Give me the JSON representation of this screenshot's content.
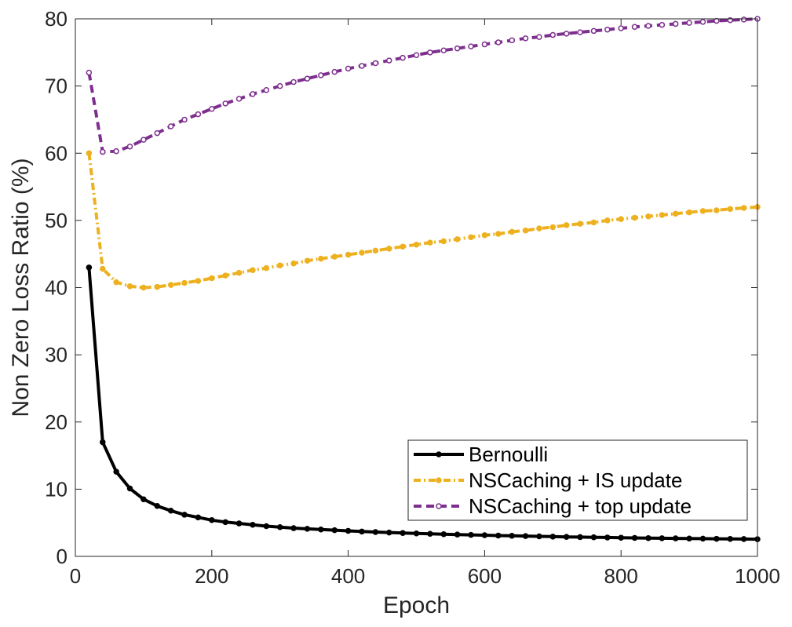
{
  "chart_data": {
    "type": "line",
    "title": "",
    "xlabel": "Epoch",
    "ylabel": "Non Zero Loss Ratio (%)",
    "xlim": [
      0,
      1000
    ],
    "ylim": [
      0,
      80
    ],
    "xticks": [
      0,
      200,
      400,
      600,
      800,
      1000
    ],
    "yticks": [
      0,
      10,
      20,
      30,
      40,
      50,
      60,
      70,
      80
    ],
    "grid": false,
    "legend_position": "bottom-right",
    "x": [
      20,
      40,
      60,
      80,
      100,
      120,
      140,
      160,
      180,
      200,
      220,
      240,
      260,
      280,
      300,
      320,
      340,
      360,
      380,
      400,
      420,
      440,
      460,
      480,
      500,
      520,
      540,
      560,
      580,
      600,
      620,
      640,
      660,
      680,
      700,
      720,
      740,
      760,
      780,
      800,
      820,
      840,
      860,
      880,
      900,
      920,
      940,
      960,
      980,
      1000
    ],
    "series": [
      {
        "name": "Bernoulli",
        "color": "#000000",
        "dash": "solid",
        "values": [
          43.0,
          17.0,
          12.6,
          10.1,
          8.5,
          7.5,
          6.8,
          6.2,
          5.8,
          5.4,
          5.1,
          4.9,
          4.7,
          4.5,
          4.35,
          4.2,
          4.1,
          4.0,
          3.9,
          3.8,
          3.7,
          3.62,
          3.55,
          3.48,
          3.42,
          3.36,
          3.3,
          3.25,
          3.2,
          3.15,
          3.1,
          3.06,
          3.02,
          2.98,
          2.94,
          2.9,
          2.87,
          2.84,
          2.81,
          2.78,
          2.75,
          2.72,
          2.7,
          2.68,
          2.66,
          2.64,
          2.62,
          2.6,
          2.58,
          2.56
        ]
      },
      {
        "name": "NSCaching + IS update",
        "color": "#EDB120",
        "dash": "dashdot",
        "values": [
          60.0,
          42.8,
          40.8,
          40.2,
          40.0,
          40.1,
          40.4,
          40.7,
          41.0,
          41.4,
          41.8,
          42.2,
          42.6,
          42.9,
          43.3,
          43.6,
          44.0,
          44.3,
          44.6,
          44.9,
          45.2,
          45.5,
          45.8,
          46.1,
          46.4,
          46.7,
          46.9,
          47.2,
          47.5,
          47.8,
          48.0,
          48.3,
          48.5,
          48.8,
          49.0,
          49.3,
          49.5,
          49.7,
          50.0,
          50.2,
          50.4,
          50.6,
          50.8,
          51.0,
          51.2,
          51.4,
          51.5,
          51.7,
          51.85,
          52.0
        ]
      },
      {
        "name": "NSCaching + top update",
        "color": "#7E2F8E",
        "dash": "dashed",
        "values": [
          72.0,
          60.2,
          60.3,
          61.0,
          62.0,
          63.0,
          64.0,
          65.0,
          65.8,
          66.6,
          67.4,
          68.1,
          68.8,
          69.4,
          70.0,
          70.6,
          71.1,
          71.6,
          72.1,
          72.6,
          73.0,
          73.4,
          73.8,
          74.2,
          74.6,
          75.0,
          75.3,
          75.6,
          75.9,
          76.2,
          76.5,
          76.8,
          77.1,
          77.3,
          77.6,
          77.8,
          78.0,
          78.2,
          78.4,
          78.6,
          78.8,
          78.95,
          79.1,
          79.25,
          79.4,
          79.55,
          79.7,
          79.8,
          79.9,
          80.0
        ]
      }
    ]
  }
}
